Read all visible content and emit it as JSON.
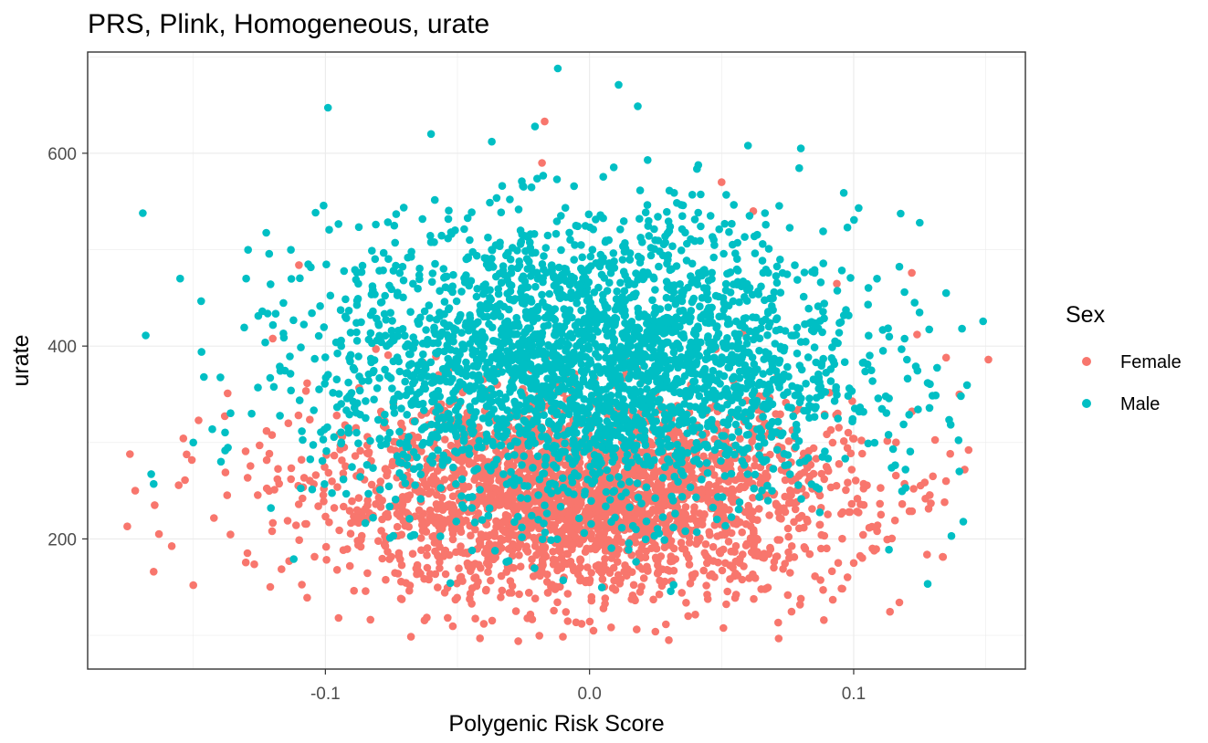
{
  "chart_data": {
    "type": "scatter",
    "title": "PRS, Plink, Homogeneous, urate",
    "xlabel": "Polygenic Risk Score",
    "ylabel": "urate",
    "xlim": [
      -0.19,
      0.165
    ],
    "ylim": [
      65,
      705
    ],
    "x_ticks": [
      -0.1,
      0.0,
      0.1
    ],
    "x_tick_labels": [
      "-0.1",
      "0.0",
      "0.1"
    ],
    "y_ticks": [
      200,
      400,
      600
    ],
    "y_tick_labels": [
      "200",
      "400",
      "600"
    ],
    "grid": true,
    "legend": {
      "title": "Sex",
      "position": "right",
      "entries": [
        "Female",
        "Male"
      ]
    },
    "colors": {
      "Female": "#F8766D",
      "Male": "#00BFC4"
    },
    "series": [
      {
        "name": "Female",
        "color": "#F8766D",
        "distribution": {
          "x_mean": -0.002,
          "x_sd": 0.05,
          "y_mean": 242,
          "y_sd": 52,
          "count": 2600
        },
        "notable_points": [
          [
            -0.174,
            288
          ],
          [
            -0.172,
            250
          ],
          [
            -0.175,
            213
          ],
          [
            -0.165,
            166
          ],
          [
            -0.163,
            205
          ],
          [
            -0.15,
            152
          ],
          [
            -0.148,
            323
          ],
          [
            -0.137,
            351
          ],
          [
            -0.11,
            484
          ],
          [
            -0.095,
            118
          ],
          [
            -0.04,
            112
          ],
          [
            -0.027,
            94
          ],
          [
            -0.017,
            633
          ],
          [
            -0.018,
            590
          ],
          [
            -0.003,
            112
          ],
          [
            0.03,
            95
          ],
          [
            0.05,
            570
          ],
          [
            0.062,
            540
          ],
          [
            0.08,
            138
          ],
          [
            0.1,
            175
          ],
          [
            0.122,
            476
          ],
          [
            0.124,
            412
          ],
          [
            0.13,
            265
          ],
          [
            0.135,
            388
          ],
          [
            0.14,
            350
          ],
          [
            0.142,
            272
          ],
          [
            0.151,
            386
          ]
        ]
      },
      {
        "name": "Male",
        "color": "#00BFC4",
        "distribution": {
          "x_mean": 0.0,
          "x_sd": 0.05,
          "y_mean": 380,
          "y_sd": 75,
          "count": 2900
        },
        "notable_points": [
          [
            -0.168,
            411
          ],
          [
            -0.165,
            257
          ],
          [
            -0.155,
            470
          ],
          [
            -0.15,
            300
          ],
          [
            -0.146,
            368
          ],
          [
            -0.13,
            470
          ],
          [
            -0.06,
            620
          ],
          [
            -0.037,
            612
          ],
          [
            -0.012,
            688
          ],
          [
            0.011,
            671
          ],
          [
            0.022,
            593
          ],
          [
            0.06,
            608
          ],
          [
            0.08,
            605
          ],
          [
            0.125,
            528
          ],
          [
            0.137,
            203
          ],
          [
            0.14,
            270
          ],
          [
            0.141,
            418
          ],
          [
            0.135,
            455
          ]
        ]
      }
    ]
  }
}
